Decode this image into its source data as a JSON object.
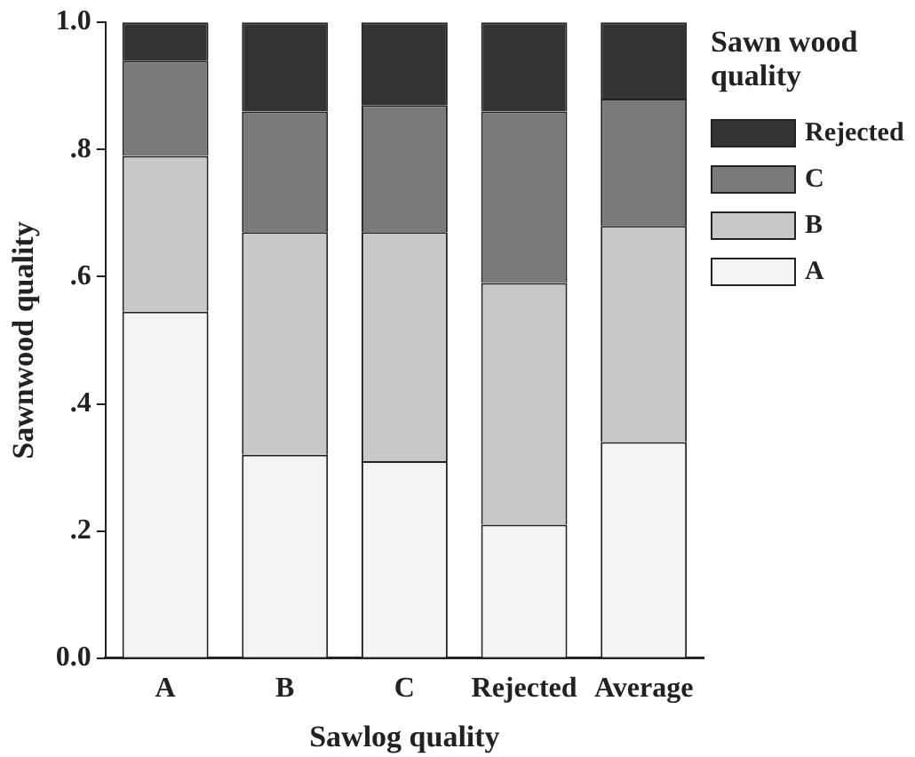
{
  "chart_data": {
    "type": "bar",
    "stacked": true,
    "xlabel": "Sawlog quality",
    "ylabel": "Sawnwood quality",
    "legend_title": "Sawn wood quality",
    "legend": "top right",
    "grid": false,
    "categories": [
      "A",
      "B",
      "C",
      "Rejected",
      "Average"
    ],
    "ylim": [
      0,
      1
    ],
    "yticks": [
      {
        "value": 0,
        "label": "0.0"
      },
      {
        "value": 0.2,
        "label": ".2"
      },
      {
        "value": 0.4,
        "label": ".4"
      },
      {
        "value": 0.6,
        "label": ".6"
      },
      {
        "value": 0.8,
        "label": ".8"
      },
      {
        "value": 1,
        "label": "1.0"
      }
    ],
    "series": [
      {
        "name": "A",
        "color": "#f4f4f4",
        "values": [
          0.545,
          0.32,
          0.31,
          0.21,
          0.34
        ]
      },
      {
        "name": "B",
        "color": "#c8c8c8",
        "values": [
          0.245,
          0.35,
          0.36,
          0.38,
          0.34
        ]
      },
      {
        "name": "C",
        "color": "#7a7a7a",
        "values": [
          0.15,
          0.19,
          0.2,
          0.27,
          0.2
        ]
      },
      {
        "name": "Rejected",
        "color": "#333333",
        "values": [
          0.06,
          0.14,
          0.13,
          0.14,
          0.12
        ]
      }
    ]
  }
}
